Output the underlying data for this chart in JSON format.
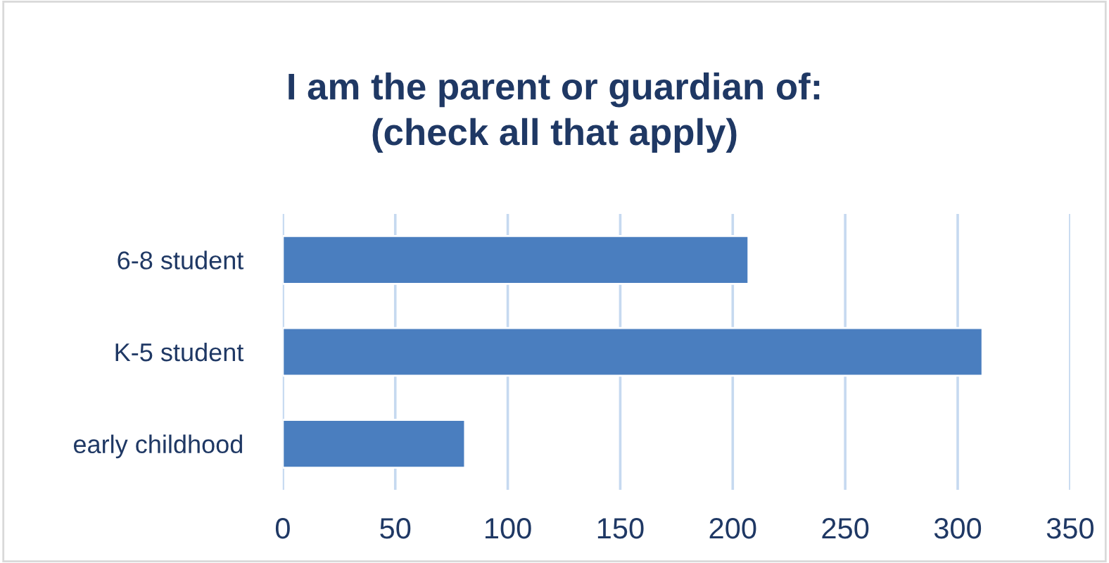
{
  "chart_data": {
    "type": "bar",
    "orientation": "horizontal",
    "title": "I am the parent or guardian of:\n(check all that apply)",
    "categories": [
      "6-8 student",
      "K-5 student",
      "early childhood"
    ],
    "values": [
      207,
      311,
      81
    ],
    "color": "#4a7ebf",
    "xlim": [
      0,
      350
    ],
    "xticks": [
      0,
      50,
      100,
      150,
      200,
      250,
      300,
      350
    ],
    "grid": "x"
  }
}
